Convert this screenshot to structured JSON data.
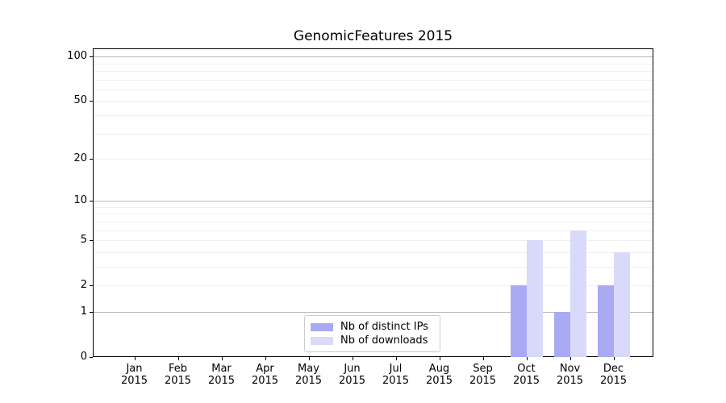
{
  "chart_data": {
    "type": "bar",
    "title": "GenomicFeatures 2015",
    "categories": [
      "Jan",
      "Feb",
      "Mar",
      "Apr",
      "May",
      "Jun",
      "Jul",
      "Aug",
      "Sep",
      "Oct",
      "Nov",
      "Dec"
    ],
    "category_year": "2015",
    "series": [
      {
        "name": "Nb of distinct IPs",
        "color": "#a9a9f4",
        "values": [
          0,
          0,
          0,
          0,
          0,
          0,
          0,
          0,
          0,
          2,
          1,
          2
        ]
      },
      {
        "name": "Nb of downloads",
        "color": "#d9d9fa",
        "values": [
          0,
          0,
          0,
          0,
          0,
          0,
          0,
          0,
          0,
          5,
          6,
          4
        ]
      }
    ],
    "y_axis": {
      "scale": "log1p",
      "tick_values": [
        0,
        1,
        2,
        5,
        10,
        20,
        50,
        100
      ],
      "tick_labels": [
        "0",
        "1",
        "2",
        "5",
        "10",
        "20",
        "50",
        "100"
      ],
      "major_grid_values": [
        1,
        10,
        100
      ],
      "minor_grid_values": [
        2,
        3,
        4,
        5,
        6,
        7,
        8,
        9,
        20,
        30,
        40,
        50,
        60,
        70,
        80,
        90
      ],
      "ylim": [
        0,
        113.5
      ]
    },
    "grid": true,
    "legend": {
      "position": "lower-center-inside",
      "items": [
        "Nb of distinct IPs",
        "Nb of downloads"
      ]
    }
  }
}
